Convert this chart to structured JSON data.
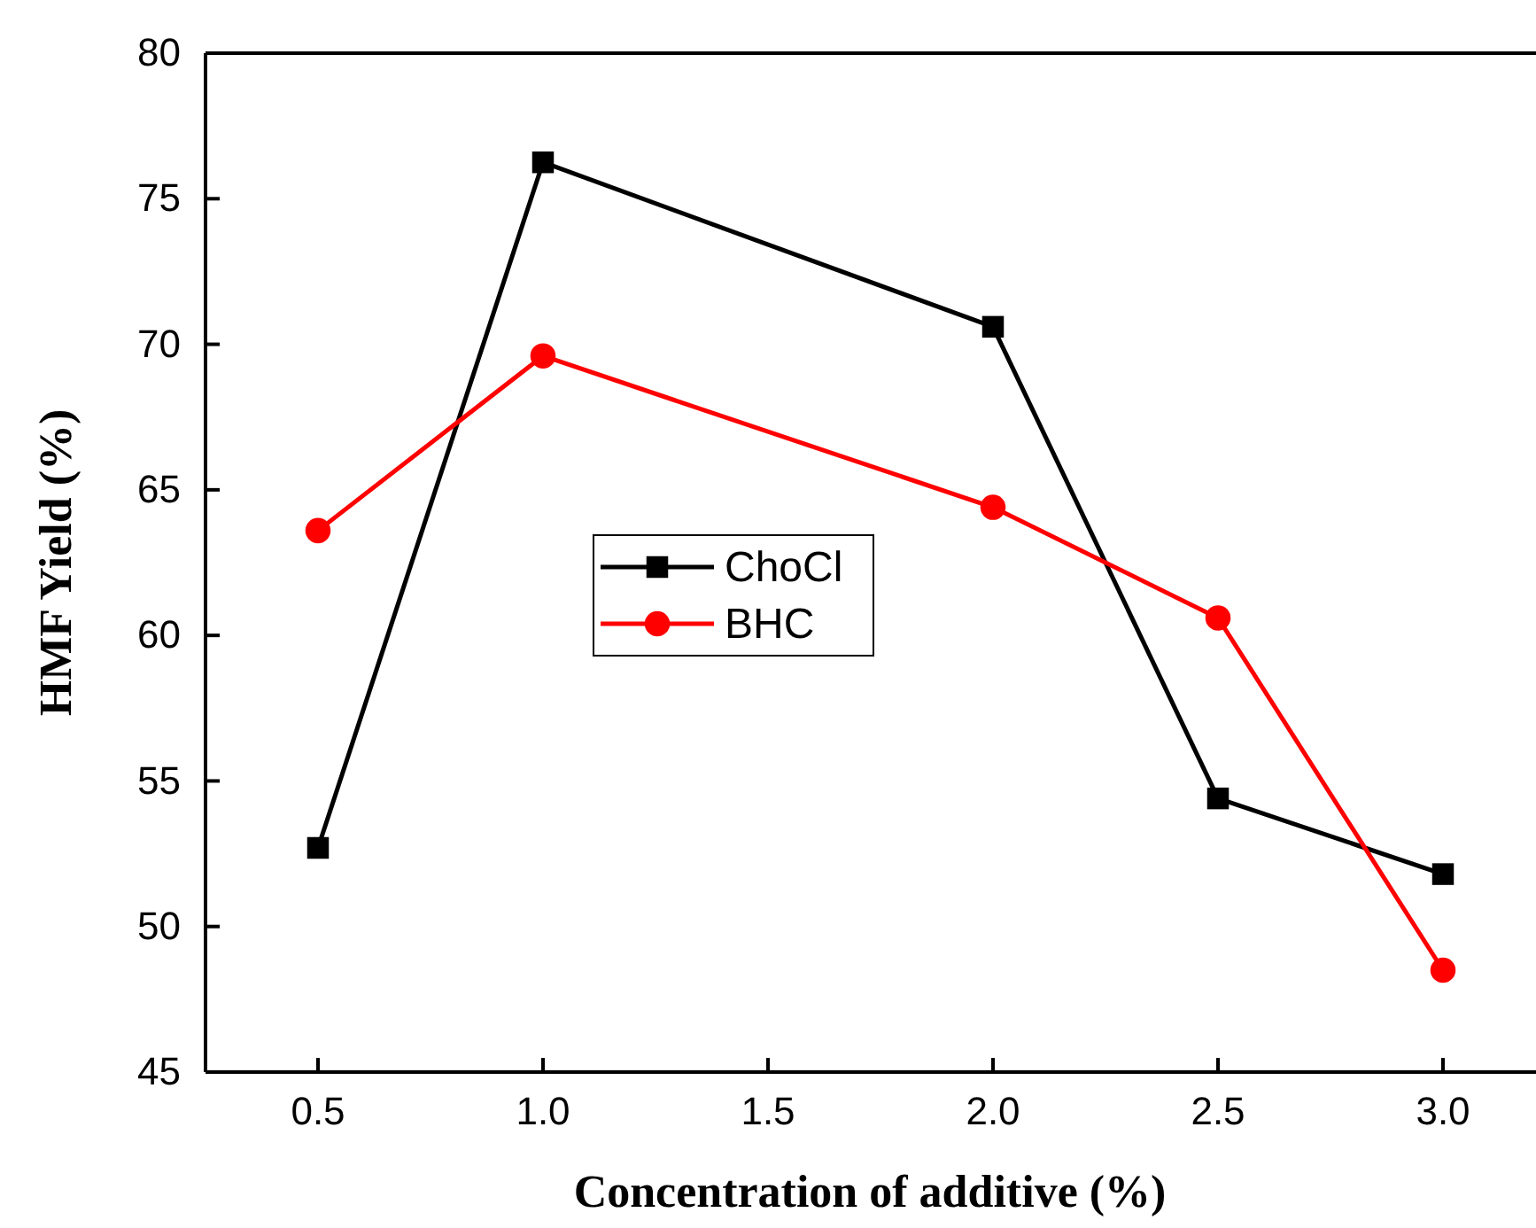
{
  "chart_data": {
    "type": "line",
    "xlabel": "Concentration of additive (%)",
    "ylabel": "HMF Yield (%)",
    "x": [
      0.5,
      1.0,
      2.0,
      2.5,
      3.0
    ],
    "xlim": [
      0.25,
      3.25
    ],
    "xticks": [
      {
        "value": 0.5,
        "label": "0.5"
      },
      {
        "value": 1.0,
        "label": "1.0"
      },
      {
        "value": 1.5,
        "label": "1.5"
      },
      {
        "value": 2.0,
        "label": "2.0"
      },
      {
        "value": 2.5,
        "label": "2.5"
      },
      {
        "value": 3.0,
        "label": "3.0"
      }
    ],
    "ylim": [
      45,
      80
    ],
    "yticks": [
      45,
      50,
      55,
      60,
      65,
      70,
      75,
      80
    ],
    "series": [
      {
        "name": "ChoCl",
        "color": "#000000",
        "marker": "square",
        "values": [
          52.7,
          76.25,
          70.6,
          54.4,
          51.8
        ]
      },
      {
        "name": "BHC",
        "color": "#ff0000",
        "marker": "circle",
        "values": [
          63.6,
          69.6,
          64.4,
          60.6,
          48.5
        ]
      }
    ],
    "legend": "center",
    "grid": false,
    "line_style": "solid"
  }
}
